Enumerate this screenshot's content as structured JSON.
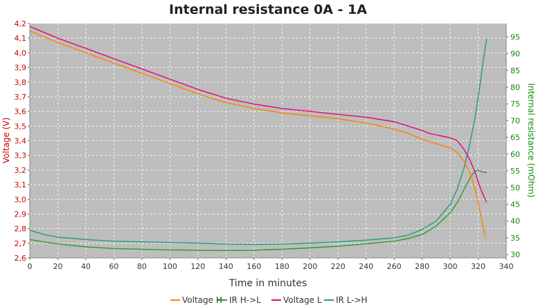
{
  "chart_data": {
    "type": "line",
    "title": "Internal resistance  0A - 1A",
    "xlabel": "Time in minutes",
    "ylabel": "Voltage (V)",
    "y2label": "Internal resistance (mOhm)",
    "xlim": [
      0,
      340
    ],
    "ylim": [
      2.6,
      4.2
    ],
    "y2lim": [
      29,
      99
    ],
    "xticks": [
      "0",
      "20",
      "40",
      "60",
      "80",
      "100",
      "120",
      "140",
      "160",
      "180",
      "200",
      "220",
      "240",
      "260",
      "280",
      "300",
      "320",
      "340"
    ],
    "yticks": [
      "2,6",
      "2,7",
      "2,8",
      "2,9",
      "3,0",
      "3,1",
      "3,2",
      "3,3",
      "3,4",
      "3,5",
      "3,6",
      "3,7",
      "3,8",
      "3,9",
      "4,0",
      "4,1",
      "4,2"
    ],
    "y2ticks": [
      "30",
      "35",
      "40",
      "45",
      "50",
      "55",
      "60",
      "65",
      "70",
      "75",
      "80",
      "85",
      "90",
      "95"
    ],
    "grid": true,
    "legend_position": "bottom",
    "series": [
      {
        "name": "Voltage H",
        "axis": "left",
        "color": "#ff8000",
        "x": [
          0,
          10,
          20,
          40,
          60,
          80,
          100,
          120,
          140,
          160,
          180,
          200,
          220,
          240,
          260,
          270,
          280,
          290,
          300,
          305,
          310,
          315,
          318,
          321,
          323,
          325
        ],
        "y": [
          4.15,
          4.11,
          4.07,
          4.0,
          3.93,
          3.86,
          3.79,
          3.72,
          3.66,
          3.62,
          3.59,
          3.57,
          3.55,
          3.52,
          3.48,
          3.45,
          3.41,
          3.38,
          3.35,
          3.32,
          3.26,
          3.16,
          3.06,
          2.93,
          2.84,
          2.74
        ]
      },
      {
        "name": "IR H->L",
        "axis": "right",
        "color": "#2a9a2a",
        "x": [
          0,
          10,
          20,
          40,
          60,
          80,
          100,
          120,
          140,
          160,
          180,
          200,
          220,
          240,
          260,
          270,
          280,
          290,
          300,
          305,
          310,
          315,
          318,
          320,
          322,
          324,
          326
        ],
        "y": [
          34.5,
          33.8,
          33.2,
          32.3,
          31.8,
          31.6,
          31.4,
          31.3,
          31.2,
          31.3,
          31.6,
          32.0,
          32.5,
          33.2,
          34.0,
          34.8,
          36.0,
          38.5,
          42.5,
          45.5,
          49.5,
          53.5,
          55.0,
          55.2,
          54.8,
          54.6,
          54.5
        ]
      },
      {
        "name": "Voltage L",
        "axis": "left",
        "color": "#e8007a",
        "x": [
          0,
          10,
          20,
          40,
          60,
          80,
          100,
          120,
          140,
          160,
          180,
          200,
          220,
          240,
          260,
          270,
          280,
          285,
          290,
          300,
          305,
          310,
          314,
          318,
          321,
          324,
          326
        ],
        "y": [
          4.18,
          4.14,
          4.1,
          4.03,
          3.96,
          3.89,
          3.82,
          3.75,
          3.69,
          3.65,
          3.62,
          3.6,
          3.58,
          3.56,
          3.53,
          3.5,
          3.47,
          3.45,
          3.44,
          3.42,
          3.4,
          3.34,
          3.27,
          3.18,
          3.09,
          3.02,
          2.98
        ]
      },
      {
        "name": "IR L->H",
        "axis": "right",
        "color": "#1f9a80",
        "x": [
          0,
          10,
          20,
          40,
          60,
          80,
          100,
          120,
          140,
          160,
          180,
          200,
          220,
          240,
          260,
          270,
          280,
          290,
          300,
          305,
          310,
          314,
          318,
          321,
          324,
          326
        ],
        "y": [
          37.3,
          36.0,
          35.2,
          34.5,
          34.0,
          33.8,
          33.6,
          33.4,
          33.1,
          33.0,
          33.1,
          33.4,
          33.8,
          34.3,
          35.0,
          35.8,
          37.5,
          40.0,
          45.0,
          49.5,
          56.0,
          63.0,
          71.5,
          80.0,
          89.0,
          94.5
        ]
      }
    ]
  }
}
